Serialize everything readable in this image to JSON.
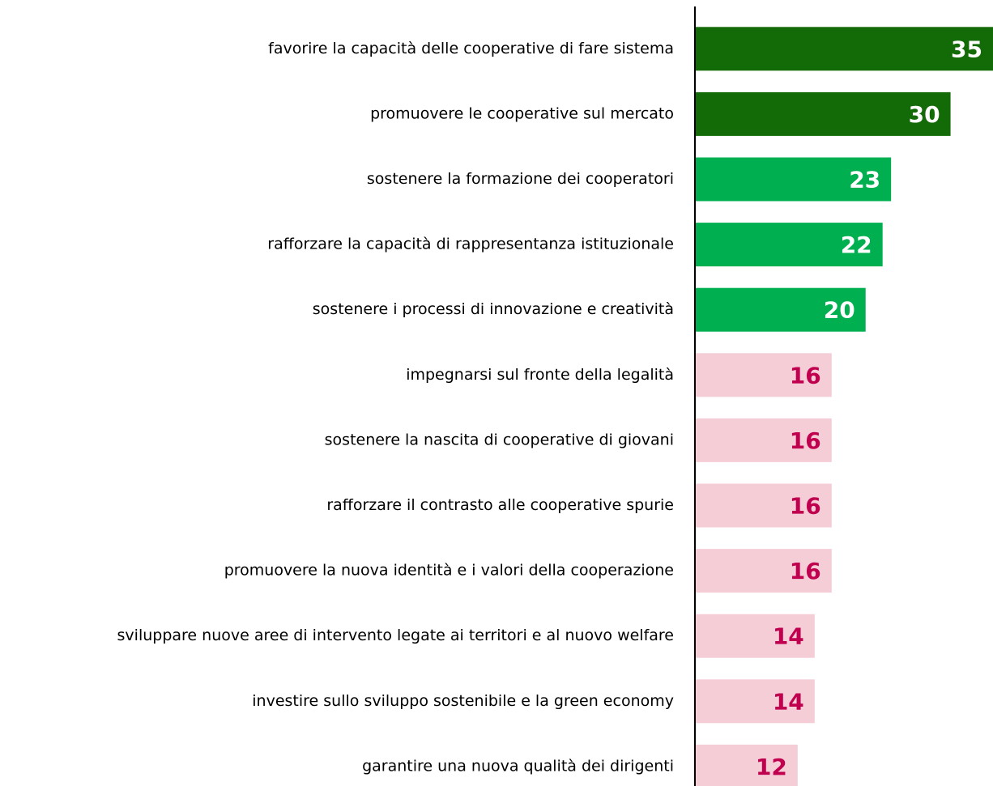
{
  "chart_data": {
    "type": "bar",
    "orientation": "horizontal",
    "categories": [
      "favorire la capacità delle cooperative di fare sistema",
      "promuovere le cooperative sul mercato",
      "sostenere la formazione dei cooperatori",
      "rafforzare la capacità di rappresentanza istituzionale",
      "sostenere i processi di innovazione e creatività",
      "impegnarsi sul fronte della legalità",
      "sostenere la nascita di cooperative di giovani",
      "rafforzare il contrasto alle cooperative spurie",
      "promuovere la nuova identità e i valori della cooperazione",
      "sviluppare nuove aree di intervento legate ai territori e al nuovo welfare",
      "investire sullo sviluppo sostenibile e la green economy",
      "garantire una nuova qualità dei dirigenti"
    ],
    "values": [
      35,
      30,
      23,
      22,
      20,
      16,
      16,
      16,
      16,
      14,
      14,
      12
    ],
    "colors": [
      "#136b08",
      "#136b08",
      "#00b050",
      "#00b050",
      "#00b050",
      "#f5cdd7",
      "#f5cdd7",
      "#f5cdd7",
      "#f5cdd7",
      "#f5cdd7",
      "#f5cdd7",
      "#f5cdd7"
    ],
    "label_colors": [
      "#ffffff",
      "#ffffff",
      "#ffffff",
      "#ffffff",
      "#ffffff",
      "#c0004f",
      "#c0004f",
      "#c0004f",
      "#c0004f",
      "#c0004f",
      "#c0004f",
      "#c0004f"
    ]
  }
}
